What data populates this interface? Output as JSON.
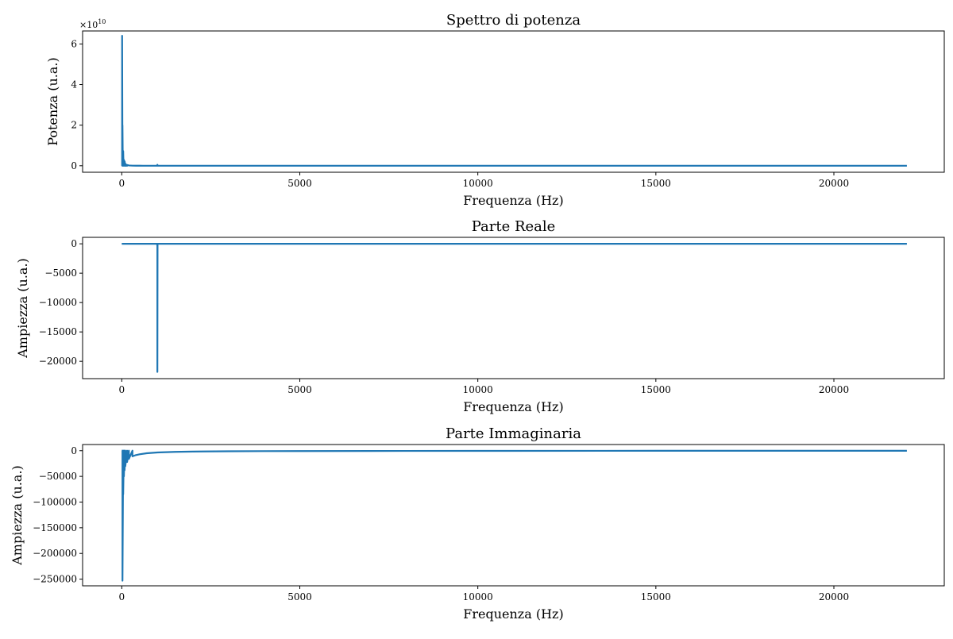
{
  "colors": {
    "line": "#1f77b4",
    "axes": "#000000",
    "background": "#ffffff"
  },
  "chart_data": [
    {
      "type": "line",
      "title": "Spettro di potenza",
      "xlabel": "Frequenza (Hz)",
      "ylabel": "Potenza (u.a.)",
      "xlim": [
        -1100,
        23100
      ],
      "ylim": [
        -3200000000.0,
        66400000000.0
      ],
      "xticks": [
        0,
        5000,
        10000,
        15000,
        20000
      ],
      "xtick_labels": [
        "0",
        "5000",
        "10000",
        "15000",
        "20000"
      ],
      "yticks": [
        0,
        20000000000.0,
        40000000000.0,
        60000000000.0
      ],
      "ytick_labels": [
        "0",
        "2",
        "4",
        "6"
      ],
      "y_multiplier": "×10^10",
      "series": [
        {
          "x": [
            0,
            10,
            10,
            20,
            20,
            30,
            30,
            40,
            40,
            50,
            50,
            60,
            60,
            70,
            70,
            80,
            80,
            100,
            100,
            120,
            120,
            150,
            150,
            200,
            250,
            300,
            400,
            500,
            600,
            800,
            990,
            1000,
            1000,
            1010,
            2000,
            5000,
            10000,
            15000,
            20000,
            22050
          ],
          "y": [
            0,
            0,
            64000000000.0,
            0,
            20000000000.0,
            0,
            4000000000.0,
            0,
            7200000000.0,
            0,
            1500000000.0,
            0,
            2900000000.0,
            0,
            1000000000.0,
            0,
            2200000000.0,
            0,
            1000000000.0,
            0,
            600000000.0,
            0,
            400000000.0,
            150000000.0,
            100000000.0,
            50000000.0,
            30000000.0,
            20000000.0,
            10000000.0,
            5000000.0,
            0,
            0,
            500000000.0,
            0,
            0,
            0,
            0,
            0,
            0,
            0
          ]
        }
      ]
    },
    {
      "type": "line",
      "title": "Parte Reale",
      "xlabel": "Frequenza (Hz)",
      "ylabel": "Ampiezza (u.a.)",
      "xlim": [
        -1100,
        23100
      ],
      "ylim": [
        -22950,
        1100
      ],
      "xticks": [
        0,
        5000,
        10000,
        15000,
        20000
      ],
      "xtick_labels": [
        "0",
        "5000",
        "10000",
        "15000",
        "20000"
      ],
      "yticks": [
        0,
        -5000,
        -10000,
        -15000,
        -20000
      ],
      "ytick_labels": [
        "0",
        "−5000",
        "−10000",
        "−15000",
        "−20000"
      ],
      "series": [
        {
          "x": [
            0,
            995,
            995,
            1000,
            1000,
            1005,
            1005,
            22050
          ],
          "y": [
            0,
            0,
            -200,
            -200,
            -21800,
            -200,
            0,
            0
          ]
        }
      ]
    },
    {
      "type": "line",
      "title": "Parte Immaginaria",
      "xlabel": "Frequenza (Hz)",
      "ylabel": "Ampiezza (u.a.)",
      "xlim": [
        -1100,
        23100
      ],
      "ylim": [
        -263000,
        12000
      ],
      "xticks": [
        0,
        5000,
        10000,
        15000,
        20000
      ],
      "xtick_labels": [
        "0",
        "5000",
        "10000",
        "15000",
        "20000"
      ],
      "yticks": [
        0,
        -50000,
        -100000,
        -150000,
        -200000,
        -250000
      ],
      "ytick_labels": [
        "0",
        "−50000",
        "−100000",
        "−150000",
        "−200000",
        "−250000"
      ],
      "series": [
        {
          "x": [
            0,
            20,
            20,
            40,
            40,
            60,
            60,
            80,
            80,
            100,
            100,
            150,
            150,
            200,
            200,
            300,
            300,
            400,
            500,
            700,
            1000,
            1500,
            2000,
            3000,
            4000,
            5000,
            7000,
            10000,
            15000,
            20000,
            22050
          ],
          "y": [
            0,
            0,
            -253000,
            0,
            -85000,
            0,
            -50000,
            0,
            -38000,
            0,
            -30000,
            0,
            -22000,
            0,
            -16000,
            0,
            -11000,
            -8500,
            -7000,
            -5000,
            -3500,
            -2300,
            -1700,
            -1100,
            -850,
            -700,
            -500,
            -350,
            -220,
            -170,
            -150
          ]
        }
      ]
    }
  ]
}
